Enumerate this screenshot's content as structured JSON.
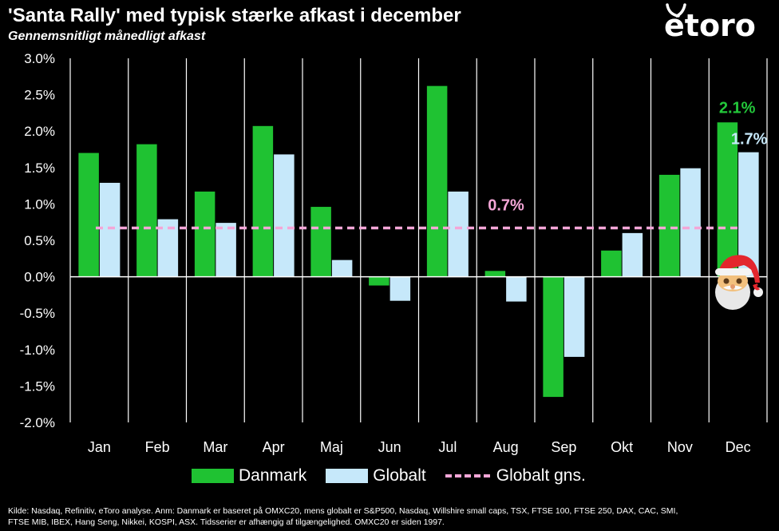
{
  "title": "'Santa Rally' med typisk stærke afkast i december",
  "subtitle": "Gennemsnitligt månedligt afkast",
  "logo_text": "etoro",
  "footer_line1": "Kilde: Nasdaq, Refinitiv, eToro analyse. Anm: Danmark er baseret på OMXC20, mens globalt er S&P500, Nasdaq, Willshire small caps, TSX, FTSE 100, FTSE 250, DAX, CAC, SMI,",
  "footer_line2": "FTSE MIB, IBEX, Hang Seng, Nikkei, KOSPI, ASX. Tidsserier er afhængig af tilgængelighed. OMXC20 er siden 1997.",
  "legend": {
    "danmark": "Danmark",
    "globalt": "Globalt",
    "avg": "Globalt gns."
  },
  "colors": {
    "danmark": "#1fc232",
    "globalt": "#c6e8fa",
    "avg": "#f4a6d7",
    "label_green": "#23c83a",
    "label_blue": "#c6e8fa",
    "label_pink": "#f4a6d7"
  },
  "chart_data": {
    "type": "bar",
    "categories": [
      "Jan",
      "Feb",
      "Mar",
      "Apr",
      "Maj",
      "Jun",
      "Jul",
      "Aug",
      "Sep",
      "Okt",
      "Nov",
      "Dec"
    ],
    "series": [
      {
        "name": "Danmark",
        "values": [
          1.7,
          1.82,
          1.17,
          2.07,
          0.96,
          -0.12,
          2.62,
          0.08,
          -1.65,
          0.36,
          1.4,
          2.12
        ]
      },
      {
        "name": "Globalt",
        "values": [
          1.29,
          0.79,
          0.74,
          1.68,
          0.23,
          -0.33,
          1.17,
          -0.34,
          -1.1,
          0.6,
          1.49,
          1.71
        ]
      }
    ],
    "reference_line": {
      "name": "Globalt gns.",
      "value": 0.67,
      "label": "0.7%"
    },
    "data_labels": [
      {
        "category": "Dec",
        "series": "Danmark",
        "text": "2.1%"
      },
      {
        "category": "Dec",
        "series": "Globalt",
        "text": "1.7%"
      }
    ],
    "ylim": [
      -2.0,
      3.0
    ],
    "yticks": [
      "3.0%",
      "2.5%",
      "2.0%",
      "1.5%",
      "1.0%",
      "0.5%",
      "0.0%",
      "-0.5%",
      "-1.0%",
      "-1.5%",
      "-2.0%"
    ],
    "ytick_values": [
      3.0,
      2.5,
      2.0,
      1.5,
      1.0,
      0.5,
      0.0,
      -0.5,
      -1.0,
      -1.5,
      -2.0
    ],
    "xlabel": "",
    "ylabel": "",
    "grid": "vertical",
    "legend_position": "bottom"
  }
}
